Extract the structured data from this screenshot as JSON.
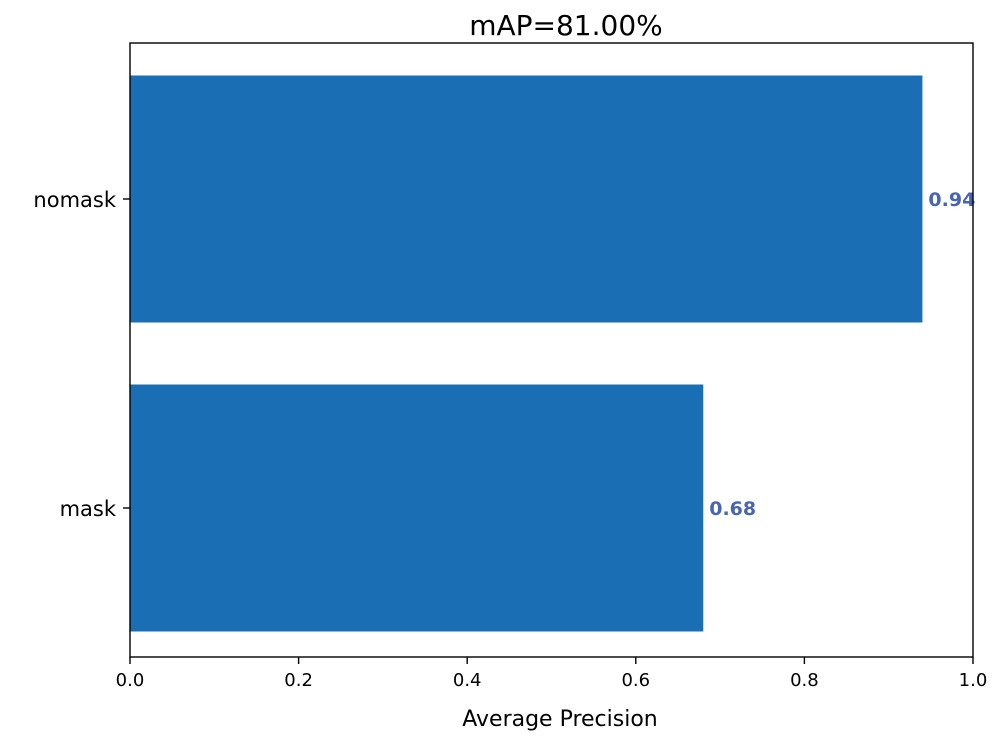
{
  "chart_data": {
    "type": "bar",
    "orientation": "horizontal",
    "title": "mAP=81.00%",
    "xlabel": "Average Precision",
    "ylabel": "",
    "categories": [
      "nomask",
      "mask"
    ],
    "values": [
      0.94,
      0.68
    ],
    "data_labels": [
      "0.94",
      "0.68"
    ],
    "xlim": [
      0.0,
      1.0
    ],
    "x_ticks": [
      "0.0",
      "0.2",
      "0.4",
      "0.6",
      "0.8",
      "1.0"
    ],
    "grid": false,
    "legend": "none"
  },
  "colors": {
    "bar": "#1a6eb4",
    "data_label": "#4a64b4",
    "axis": "#000000"
  }
}
